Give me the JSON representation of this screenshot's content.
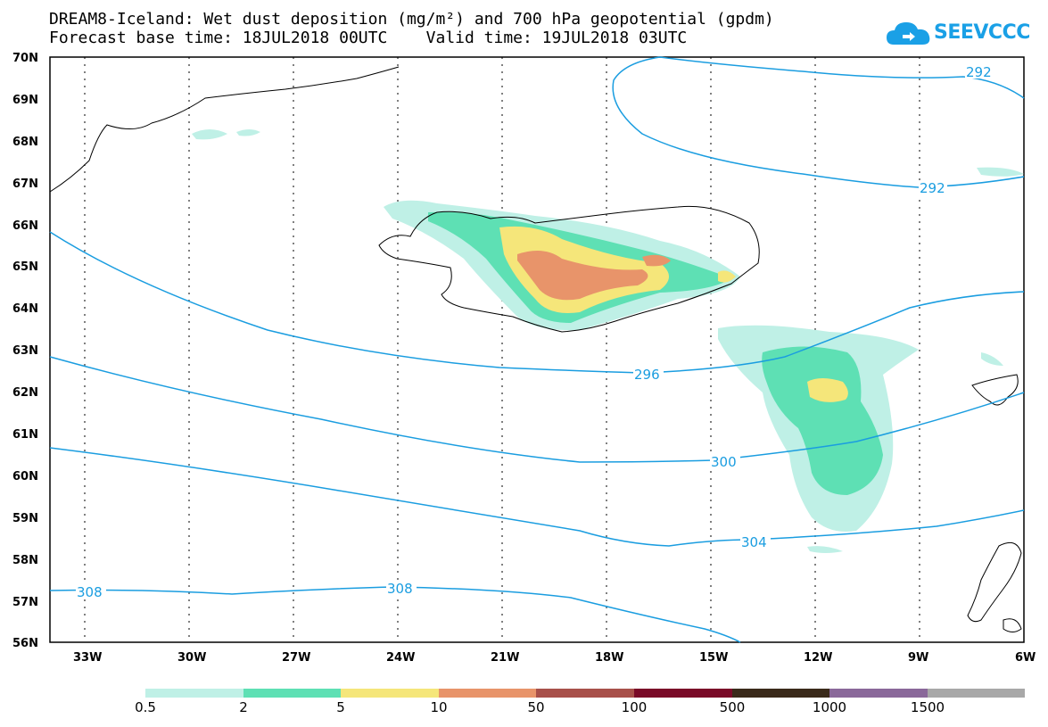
{
  "header": {
    "title_line1": "DREAM8-Iceland: Wet dust deposition (mg/m²) and 700 hPa geopotential (gpdm)",
    "title_line2": "Forecast base time: 18JUL2018 00UTC    Valid time: 19JUL2018 03UTC"
  },
  "logo": {
    "text": "SEEVCCC",
    "icon": "cloud-icon",
    "color": "#1aa0e6"
  },
  "map": {
    "lat_labels": [
      "70N",
      "69N",
      "68N",
      "67N",
      "66N",
      "65N",
      "64N",
      "63N",
      "62N",
      "61N",
      "60N",
      "59N",
      "58N",
      "57N",
      "56N"
    ],
    "lon_labels": [
      "33W",
      "30W",
      "27W",
      "24W",
      "21W",
      "18W",
      "15W",
      "12W",
      "9W",
      "6W"
    ],
    "contour_labels": [
      "292",
      "292",
      "296",
      "300",
      "304",
      "308",
      "308"
    ],
    "contour_color": "#1a9de0"
  },
  "legend": {
    "thresholds": [
      "0.5",
      "2",
      "5",
      "10",
      "50",
      "100",
      "500",
      "1000",
      "1500"
    ],
    "colors": [
      "#bff0e6",
      "#5ee0b4",
      "#f5e67a",
      "#e8946a",
      "#a8504a",
      "#7a0a28",
      "#3a2a1a",
      "#8a689a",
      "#a8a8a8"
    ]
  }
}
